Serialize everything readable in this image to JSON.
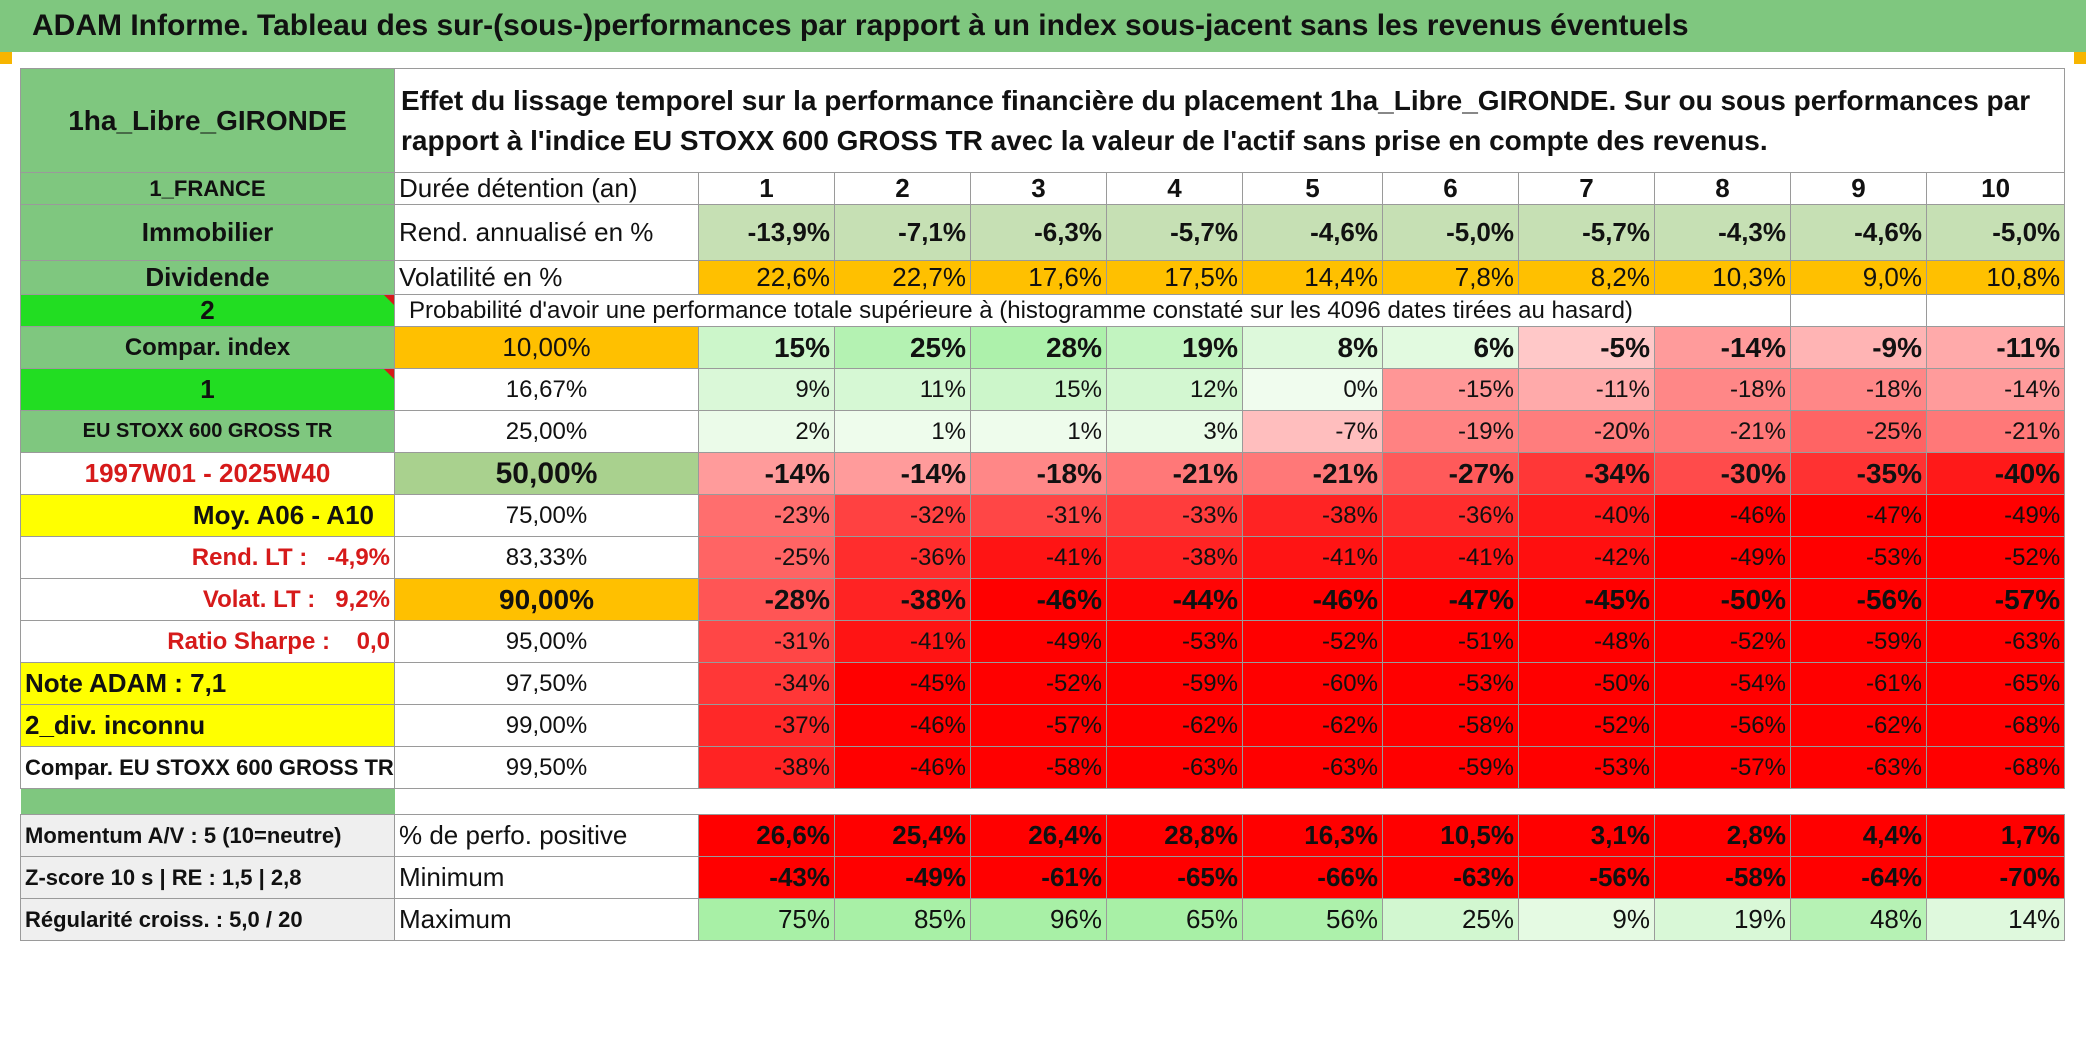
{
  "banner_title": "ADAM Informe. Tableau des sur-(sous-)performances par rapport à un index sous-jacent sans les revenus éventuels",
  "fund_name": "1ha_Libre_GIRONDE",
  "description": "Effet du lissage temporel sur la performance financière du placement 1ha_Libre_GIRONDE. Sur ou sous performances par rapport à l'indice EU STOXX 600 GROSS TR avec la valeur de l'actif sans prise en compte des revenus.",
  "left": {
    "country": "1_FRANCE",
    "category": "Immobilier",
    "type": "Dividende",
    "mode": "2",
    "compar_index": "Compar. index",
    "index_num": "1",
    "index_name": "EU STOXX 600 GROSS TR",
    "period": "1997W01 - 2025W40",
    "moy": "Moy. A06 - A10",
    "rend_lt": "Rend. LT :   -4,9%",
    "volat_lt": "Volat. LT :   9,2%",
    "sharpe": "Ratio Sharpe :    0,0",
    "note": "Note ADAM : 7,1",
    "div": "2_div. inconnu",
    "compar_full": "Compar. EU STOXX 600 GROSS TR",
    "momentum": "Momentum A/V : 5 (10=neutre)",
    "zscore": "Z-score 10 s | RE : 1,5 | 2,8",
    "regularite": "Régularité croiss. : 5,0 / 20"
  },
  "row_labels": {
    "duree": "Durée détention (an)",
    "rend": "Rend. annualisé en %",
    "vol": "Volatilité en %",
    "proba": "Probabilité d'avoir une performance totale supérieure à (histogramme constaté sur les 4096 dates tirées au hasard)",
    "pos": "% de perfo. positive",
    "min": "Minimum",
    "max": "Maximum"
  },
  "years": [
    "1",
    "2",
    "3",
    "4",
    "5",
    "6",
    "7",
    "8",
    "9",
    "10"
  ],
  "rend": [
    "-13,9%",
    "-7,1%",
    "-6,3%",
    "-5,7%",
    "-4,6%",
    "-5,0%",
    "-5,7%",
    "-4,3%",
    "-4,6%",
    "-5,0%"
  ],
  "vol": [
    "22,6%",
    "22,7%",
    "17,6%",
    "17,5%",
    "14,4%",
    "7,8%",
    "8,2%",
    "10,3%",
    "9,0%",
    "10,8%"
  ],
  "quantiles": [
    {
      "p": "10,00%",
      "v": [
        "15%",
        "25%",
        "28%",
        "19%",
        "8%",
        "6%",
        "-5%",
        "-14%",
        "-9%",
        "-11%"
      ]
    },
    {
      "p": "16,67%",
      "v": [
        "9%",
        "11%",
        "15%",
        "12%",
        "0%",
        "-15%",
        "-11%",
        "-18%",
        "-18%",
        "-14%"
      ]
    },
    {
      "p": "25,00%",
      "v": [
        "2%",
        "1%",
        "1%",
        "3%",
        "-7%",
        "-19%",
        "-20%",
        "-21%",
        "-25%",
        "-21%"
      ]
    },
    {
      "p": "50,00%",
      "v": [
        "-14%",
        "-14%",
        "-18%",
        "-21%",
        "-21%",
        "-27%",
        "-34%",
        "-30%",
        "-35%",
        "-40%"
      ]
    },
    {
      "p": "75,00%",
      "v": [
        "-23%",
        "-32%",
        "-31%",
        "-33%",
        "-38%",
        "-36%",
        "-40%",
        "-46%",
        "-47%",
        "-49%"
      ]
    },
    {
      "p": "83,33%",
      "v": [
        "-25%",
        "-36%",
        "-41%",
        "-38%",
        "-41%",
        "-41%",
        "-42%",
        "-49%",
        "-53%",
        "-52%"
      ]
    },
    {
      "p": "90,00%",
      "v": [
        "-28%",
        "-38%",
        "-46%",
        "-44%",
        "-46%",
        "-47%",
        "-45%",
        "-50%",
        "-56%",
        "-57%"
      ]
    },
    {
      "p": "95,00%",
      "v": [
        "-31%",
        "-41%",
        "-49%",
        "-53%",
        "-52%",
        "-51%",
        "-48%",
        "-52%",
        "-59%",
        "-63%"
      ]
    },
    {
      "p": "97,50%",
      "v": [
        "-34%",
        "-45%",
        "-52%",
        "-59%",
        "-60%",
        "-53%",
        "-50%",
        "-54%",
        "-61%",
        "-65%"
      ]
    },
    {
      "p": "99,00%",
      "v": [
        "-37%",
        "-46%",
        "-57%",
        "-62%",
        "-62%",
        "-58%",
        "-52%",
        "-56%",
        "-62%",
        "-68%"
      ]
    },
    {
      "p": "99,50%",
      "v": [
        "-38%",
        "-46%",
        "-58%",
        "-63%",
        "-63%",
        "-59%",
        "-53%",
        "-57%",
        "-63%",
        "-68%"
      ]
    }
  ],
  "pos": [
    "26,6%",
    "25,4%",
    "26,4%",
    "28,8%",
    "16,3%",
    "10,5%",
    "3,1%",
    "2,8%",
    "4,4%",
    "1,7%"
  ],
  "min": [
    "-43%",
    "-49%",
    "-61%",
    "-65%",
    "-66%",
    "-63%",
    "-56%",
    "-58%",
    "-64%",
    "-70%"
  ],
  "max": [
    "75%",
    "85%",
    "96%",
    "65%",
    "56%",
    "25%",
    "9%",
    "19%",
    "48%",
    "14%"
  ],
  "colors": {
    "banner": "#7fc77f",
    "positive": "#a8f0a0",
    "negative": "#ff0000",
    "orange": "#ffc000",
    "yellow": "#ffff00"
  }
}
